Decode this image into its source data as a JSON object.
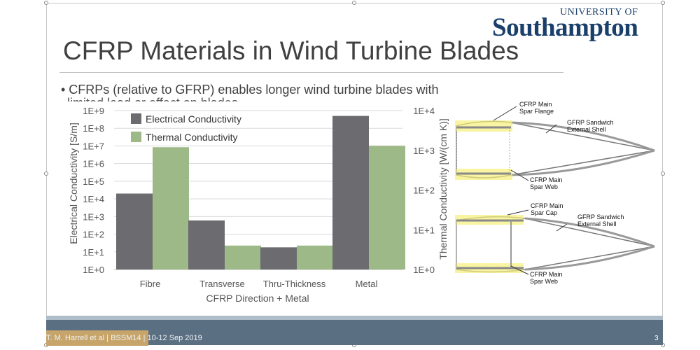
{
  "slide": {
    "title": "CFRP Materials in Wind Turbine Blades",
    "bullet": "• CFRPs (relative to GFRP) enables longer wind turbine blades with",
    "bullet_cut": "limited load or effect on blades",
    "logo_top": "UNIVERSITY OF",
    "logo_main": "Southampton",
    "footer": "T. M. Harrell et al | BSSM14 | 10-12 Sep 2019",
    "page_number": "3"
  },
  "chart_data": {
    "type": "bar",
    "log_scale": true,
    "categories": [
      "Fibre",
      "Transverse",
      "Thru-Thickness",
      "Metal"
    ],
    "xlabel": "CFRP Direction + Metal",
    "y_left": {
      "label": "Electrical Conductivity [S/m]",
      "ticks": [
        "1E+0",
        "1E+1",
        "1E+2",
        "1E+3",
        "1E+4",
        "1E+5",
        "1E+6",
        "1E+7",
        "1E+8",
        "1E+9"
      ],
      "range": [
        1,
        1000000000
      ]
    },
    "y_right": {
      "label": "Thermal Conductivity [W/(cm K)]",
      "ticks": [
        "1E+0",
        "1E+1",
        "1E+2",
        "1E+3",
        "1E+4"
      ],
      "range": [
        1,
        10000
      ]
    },
    "series": [
      {
        "name": "Electrical Conductivity",
        "axis": "left",
        "color": "#6b6b70",
        "values": [
          20000,
          600,
          18,
          500000000
        ]
      },
      {
        "name": "Thermal Conductivity",
        "axis": "right",
        "color": "#9db987",
        "values": [
          1200,
          4,
          4,
          1300
        ]
      }
    ],
    "grid": true,
    "legend_position": "top-left"
  },
  "diagram": {
    "top_labels": [
      "CFRP Main",
      "Spar Flange",
      "GFRP Sandwich",
      "External Shell",
      "CFRP Main",
      "Spar Web"
    ],
    "bottom_labels": [
      "CFRP Main",
      "Spar Cap",
      "GFRP Sandwich",
      "External Shell",
      "CFRP Main",
      "Spar Web"
    ],
    "highlight_color": "#f5f07a"
  }
}
